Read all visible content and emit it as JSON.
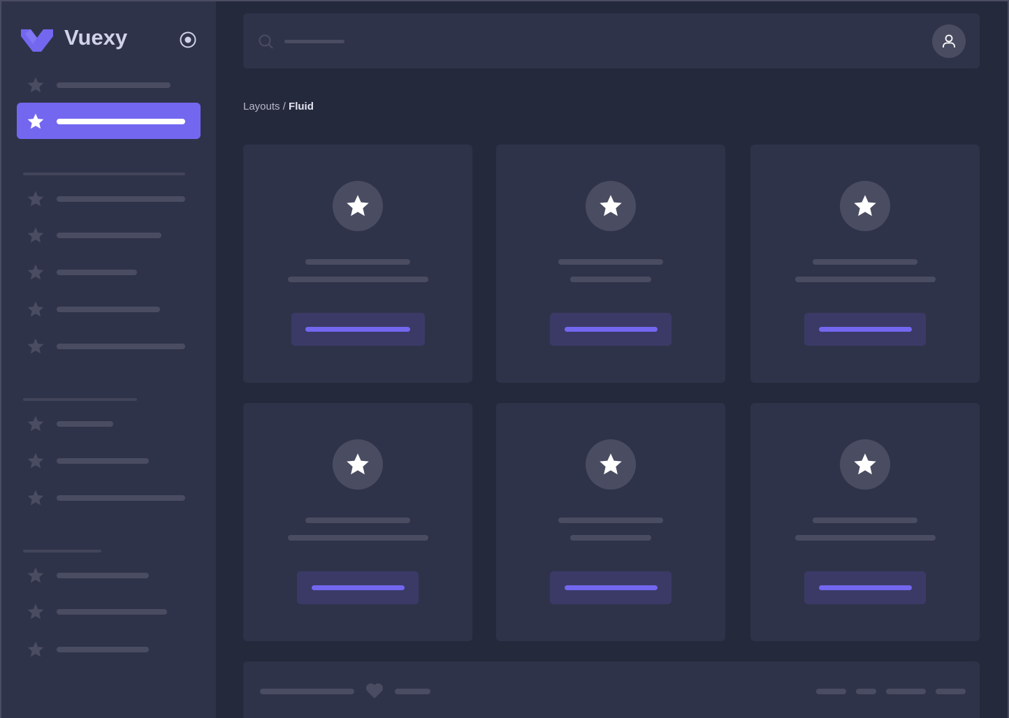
{
  "brand": {
    "name": "Vuexy",
    "logo_color": "#7367f0"
  },
  "sidebar": {
    "toggle_icon": "radio-circle-icon",
    "item_icon": "star-icon",
    "active_index": 1,
    "active_color": "#7367f0"
  },
  "navbar": {
    "search_icon": "search-icon",
    "avatar_icon": "user-icon"
  },
  "breadcrumb": {
    "parent": "Layouts / ",
    "current": "Fluid"
  },
  "cards": {
    "icon": "star-icon",
    "count": 6
  },
  "footer": {
    "icon": "heart-icon"
  },
  "colors": {
    "background": "#25293c",
    "surface": "#2f3349",
    "placeholder": "#4a4c62",
    "primary": "#7367f0",
    "button_bg": "#3b3a67"
  }
}
